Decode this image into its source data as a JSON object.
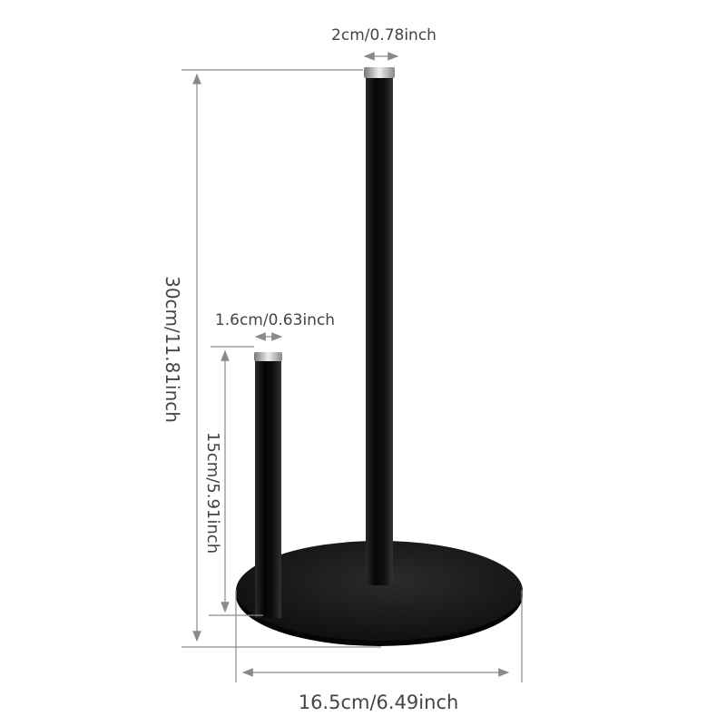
{
  "product": "paper towel holder",
  "colors": {
    "product": "#111111",
    "dimension_lines": "#8a8a8a",
    "label_text": "#444444",
    "cap": "#c8c8c8"
  },
  "dimensions": {
    "tall_pole_diameter": "2cm/0.78inch",
    "short_pole_diameter": "1.6cm/0.63inch",
    "total_height": "30cm/11.81inch",
    "short_pole_height": "15cm/5.91inch",
    "base_diameter": "16.5cm/6.49inch"
  }
}
